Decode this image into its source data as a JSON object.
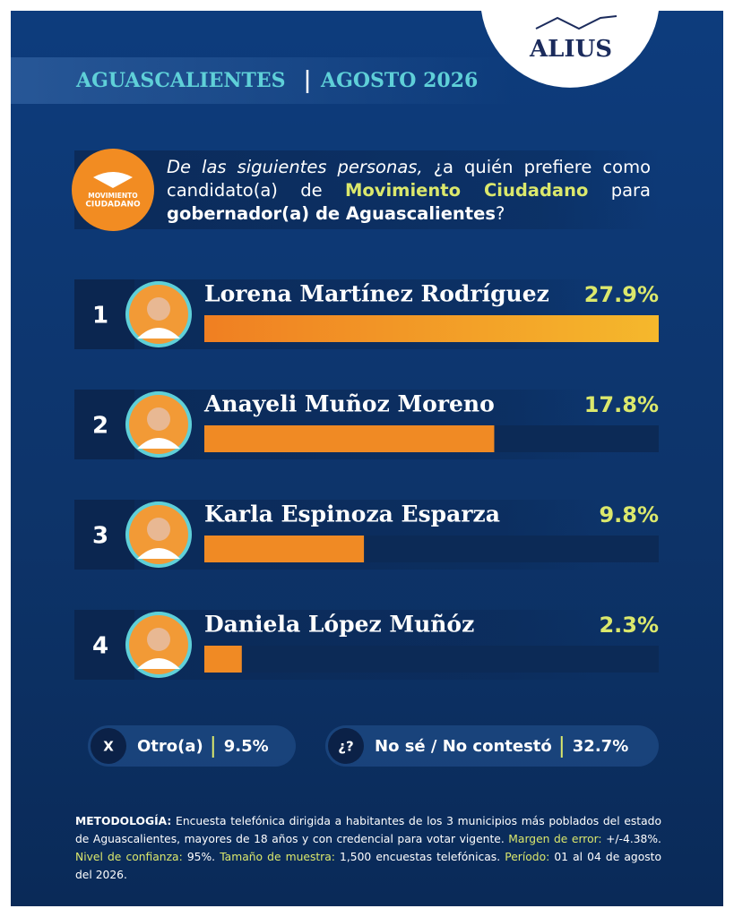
{
  "header": {
    "state": "AGUASCALIENTES",
    "date": "AGOSTO 2026",
    "logo": "ALIUS"
  },
  "party_logo": {
    "line1": "MOVIMIENTO",
    "line2": "CIUDADANO"
  },
  "question": {
    "intro": "De las siguientes personas,",
    "part1": "¿a quién prefiere como candidato(a) de",
    "party": "Movimiento Ciudadano",
    "part2": "para",
    "office": "gobernador(a) de Aguascalientes",
    "end": "?"
  },
  "chart_data": {
    "type": "bar",
    "orientation": "horizontal",
    "ranks": [
      "1",
      "2",
      "3",
      "4"
    ],
    "categories": [
      "Lorena Martínez Rodríguez",
      "Anayeli Muñoz Moreno",
      "Karla Espinoza Esparza",
      "Daniela López Muñóz"
    ],
    "values": [
      27.9,
      17.8,
      9.8,
      2.3
    ],
    "value_labels": [
      "27.9%",
      "17.8%",
      "9.8%",
      "2.3%"
    ],
    "xlim": [
      0,
      27.9
    ],
    "color": "#f08a24",
    "label_color": "#dbe86c"
  },
  "others": [
    {
      "icon": "X",
      "label": "Otro(a)",
      "value": 9.5,
      "value_label": "9.5%"
    },
    {
      "icon": "¿?",
      "label": "No sé / No contestó",
      "value": 32.7,
      "value_label": "32.7%"
    }
  ],
  "methodology": [
    {
      "label": "METODOLOGÍA:",
      "text": "Encuesta telefónica dirigida a habitantes de los 3 municipios más poblados del estado de Aguascalientes, mayores de 18 años y con credencial para votar vigente."
    },
    {
      "label": "Margen de error:",
      "text": "+/-4.38%."
    },
    {
      "label": "Nivel de confianza:",
      "text": "95%."
    },
    {
      "label": "Tamaño de muestra:",
      "text": "1,500 encuestas telefónicas."
    },
    {
      "label": "Período:",
      "text": "01 al 04 de agosto del 2026."
    }
  ]
}
